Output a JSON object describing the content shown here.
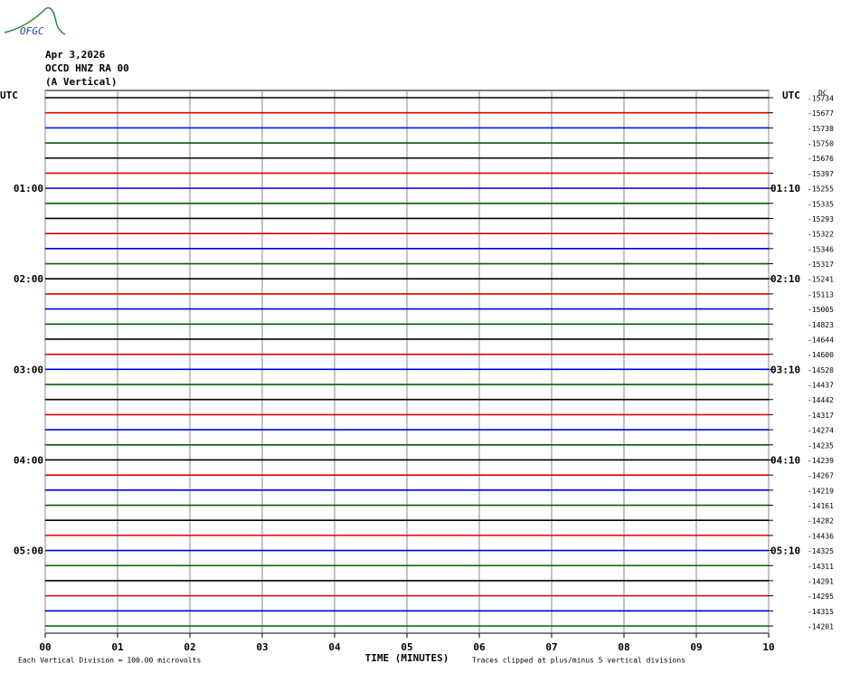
{
  "logo": "OFGC",
  "header": {
    "date": "Apr 3,2026",
    "station": "OCCD HNZ RA 00",
    "component": "(A Vertical)"
  },
  "left_axis": {
    "title": "UTC",
    "labels": [
      "01:00",
      "02:00",
      "03:00",
      "04:00",
      "05:00"
    ]
  },
  "right_axis": {
    "title": "UTC",
    "dc": "DC",
    "labels": [
      "01:10",
      "02:10",
      "03:10",
      "04:10",
      "05:10"
    ],
    "offsets": [
      "-15734",
      "-15677",
      "-15738",
      "-15750",
      "-15676",
      "-15397",
      "-15255",
      "-15335",
      "-15293",
      "-15322",
      "-15346",
      "-15317",
      "-15241",
      "-15113",
      "-15005",
      "-14823",
      "-14644",
      "-14600",
      "-14520",
      "-14437",
      "-14442",
      "-14317",
      "-14274",
      "-14235",
      "-14239",
      "-14267",
      "-14219",
      "-14161",
      "-14282",
      "-14436",
      "-14325",
      "-14311",
      "-14291",
      "-14295",
      "-14315",
      "-14201"
    ]
  },
  "trace_colors": [
    "#000000",
    "#e00000",
    "#0000e0",
    "#006000"
  ],
  "x_axis": {
    "title": "TIME (MINUTES)",
    "ticks": [
      "00",
      "01",
      "02",
      "03",
      "04",
      "05",
      "06",
      "07",
      "08",
      "09",
      "10"
    ]
  },
  "footer": {
    "scale_note": "Each Vertical Division =  100.00 microvolts",
    "clip_note": "Traces clipped at plus/minus 5 vertical divisions"
  }
}
